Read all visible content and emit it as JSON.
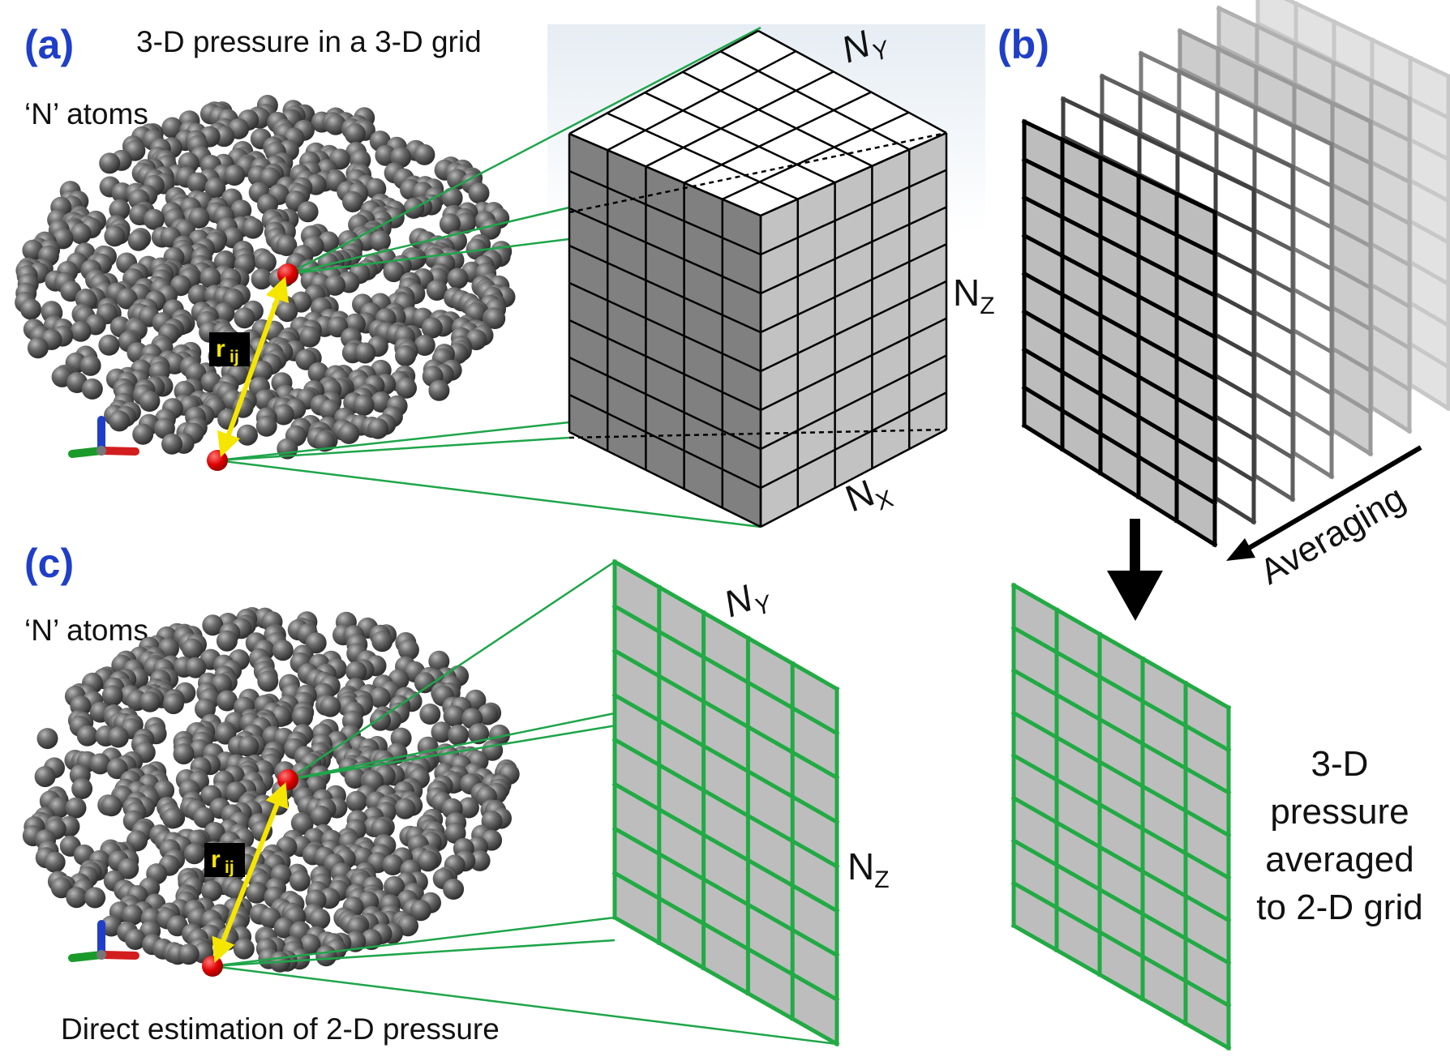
{
  "panels": {
    "a": {
      "label": "(a)",
      "title": "3-D pressure in a 3-D grid",
      "atoms": "‘N’ atoms",
      "rij": "r",
      "rij_sub": "ij",
      "nx": "N",
      "nx_sub": "X",
      "ny": "N",
      "ny_sub": "Y",
      "nz": "N",
      "nz_sub": "Z"
    },
    "b": {
      "label": "(b)",
      "averaging": "Averaging",
      "caption_lines": [
        "3-D",
        "pressure",
        "averaged",
        "to 2-D grid"
      ]
    },
    "c": {
      "label": "(c)",
      "atoms": "‘N’ atoms",
      "rij": "r",
      "rij_sub": "ij",
      "ny": "N",
      "ny_sub": "Y",
      "nz": "N",
      "nz_sub": "Z",
      "caption": "Direct estimation of 2-D pressure"
    }
  },
  "colors": {
    "label_blue": "#1f3fc8",
    "atom_gray": "#5a5a5a",
    "highlight_atom": "#e00000",
    "projection_line": "#1ea54a",
    "grid_green": "#22aa44",
    "arrow_yellow": "#f5e600",
    "cell_gray": "#bdbdbd"
  },
  "icons": [
    "xyz-axes-icon",
    "double-arrow-icon",
    "down-arrow-icon",
    "averaging-arrow-icon"
  ]
}
